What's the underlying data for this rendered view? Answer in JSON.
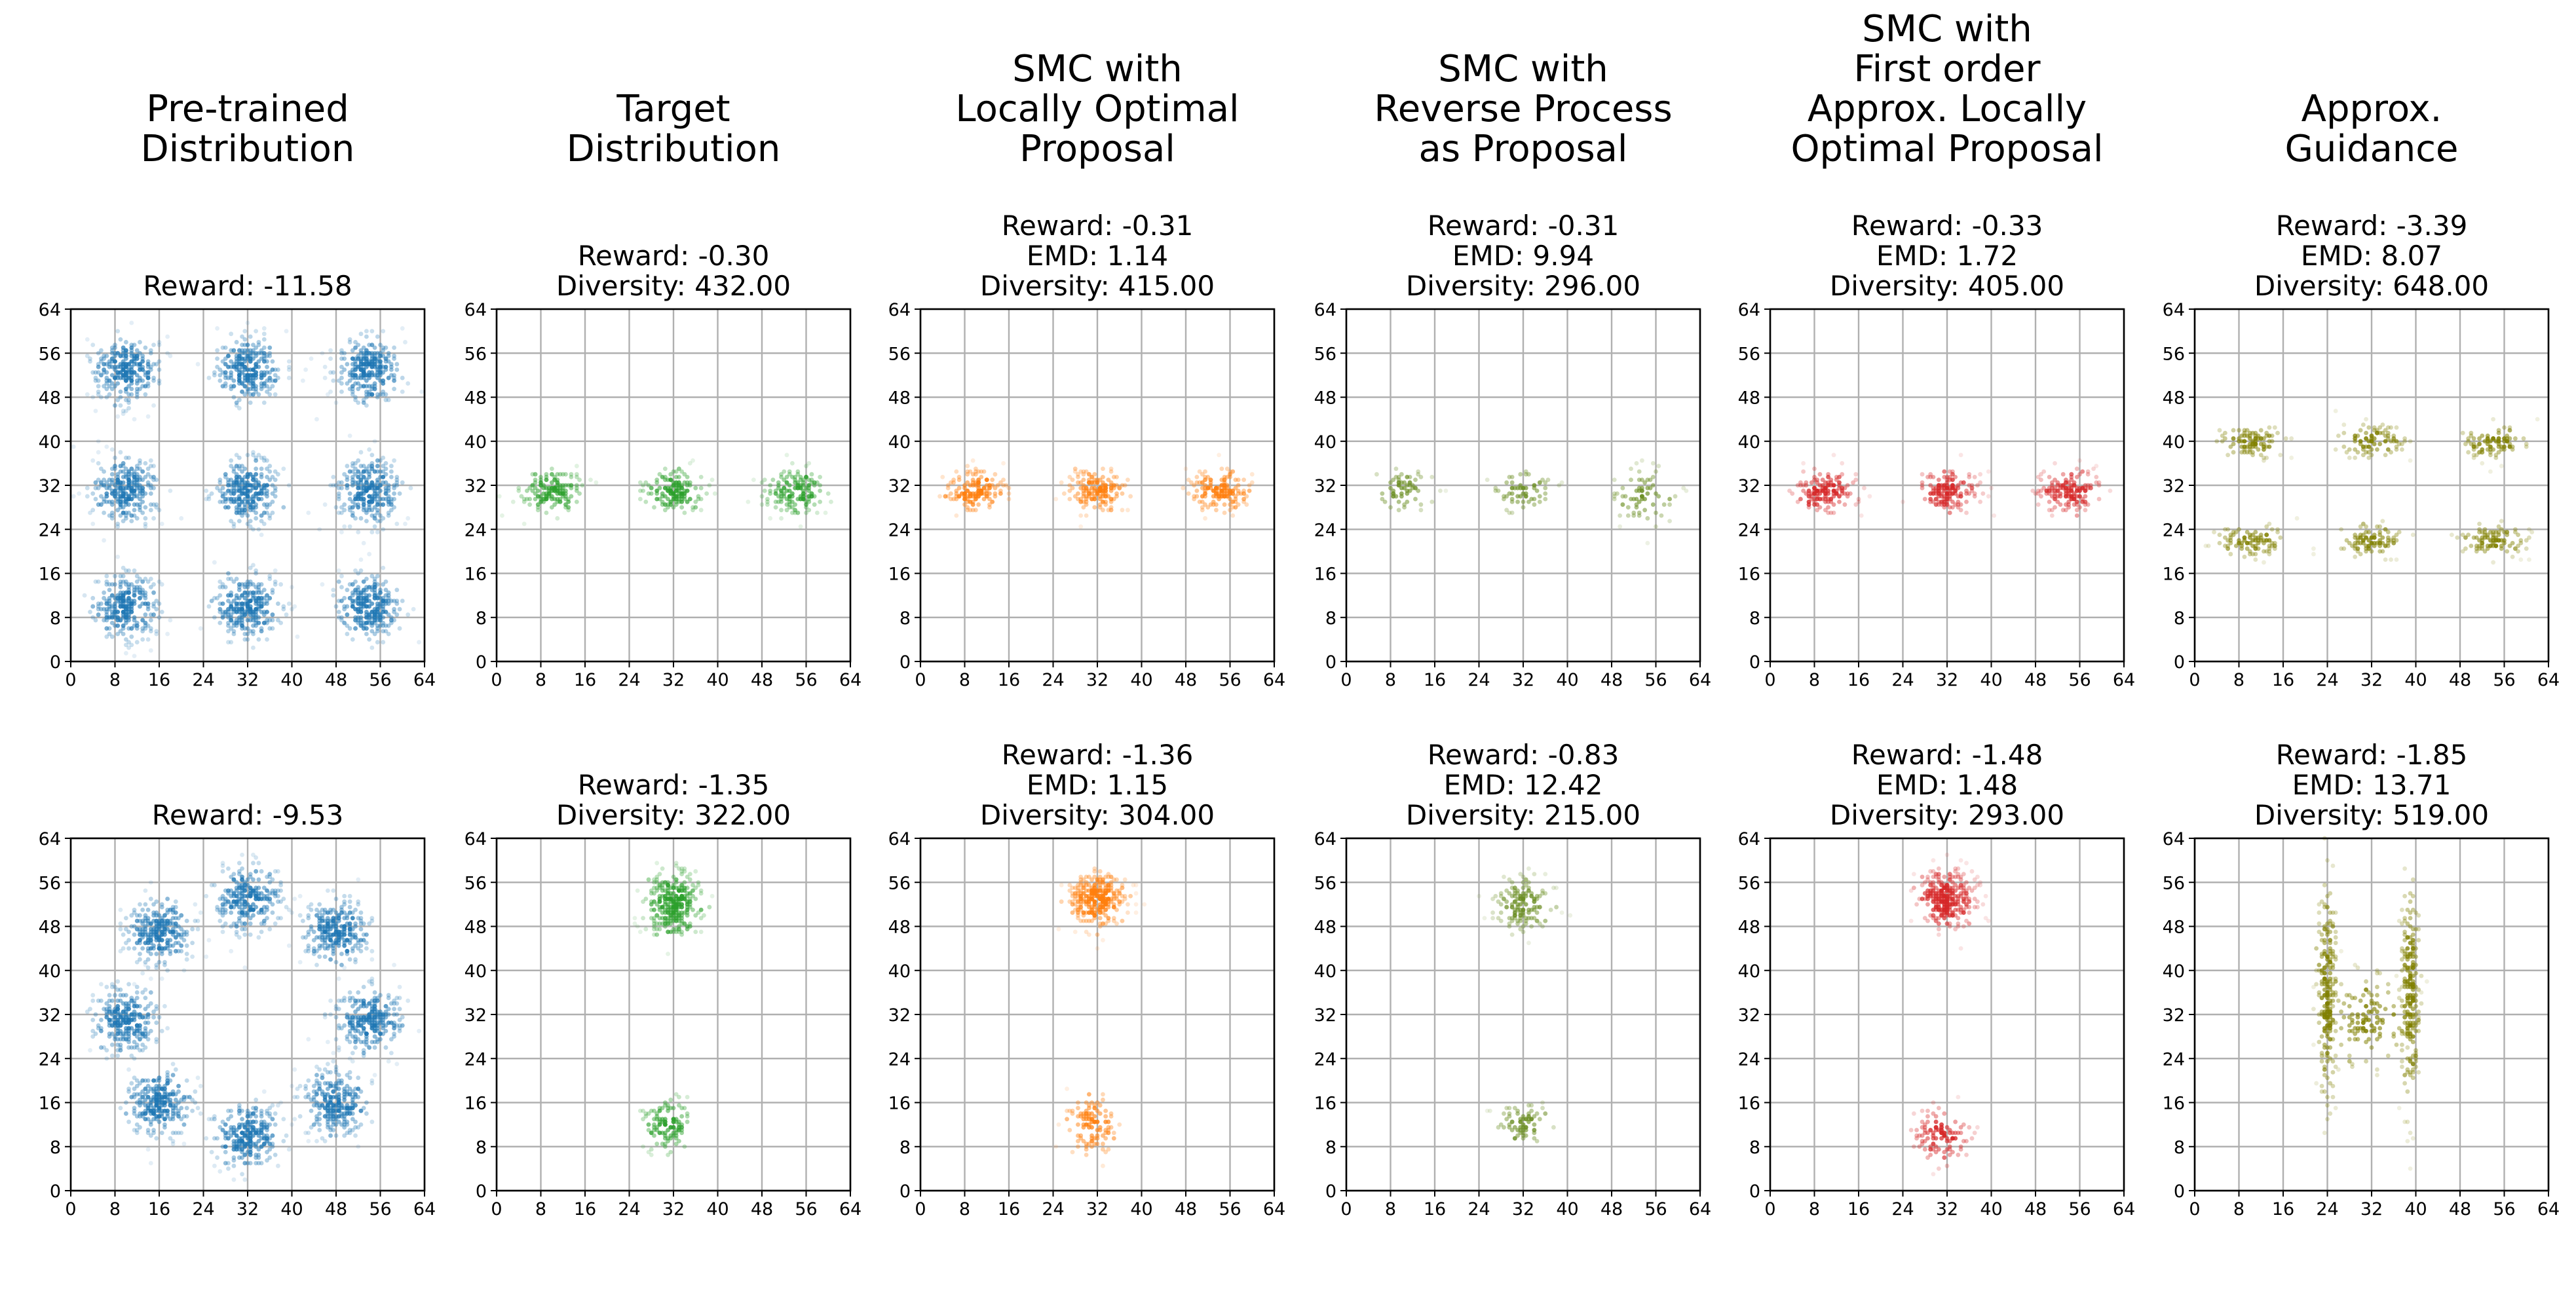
{
  "columns": [
    {
      "title": "Pre-trained\nDistribution",
      "color": "#1f77b4"
    },
    {
      "title": "Target\nDistribution",
      "color": "#2ca02c"
    },
    {
      "title": "SMC with\nLocally Optimal\nProposal",
      "color": "#ff7f0e"
    },
    {
      "title": "SMC with\nReverse Process\nas Proposal",
      "color": "#6b8e23"
    },
    {
      "title": "SMC with\nFirst order\nApprox. Locally\nOptimal Proposal",
      "color": "#d62728"
    },
    {
      "title": "Approx.\nGuidance",
      "color": "#808000"
    }
  ],
  "chart_data": [
    {
      "type": "scatter",
      "row": 0,
      "col": 0,
      "stats": [
        "Reward: -11.58"
      ],
      "xlim": [
        0,
        64
      ],
      "ylim": [
        0,
        64
      ],
      "ticks": [
        0,
        8,
        16,
        24,
        32,
        40,
        48,
        56,
        64
      ],
      "grid": true,
      "clusters": [
        {
          "x": 10,
          "y": 10,
          "sx": 3,
          "sy": 3,
          "n": 260
        },
        {
          "x": 32,
          "y": 10,
          "sx": 3,
          "sy": 3,
          "n": 260
        },
        {
          "x": 54,
          "y": 10,
          "sx": 3,
          "sy": 3,
          "n": 260
        },
        {
          "x": 10,
          "y": 31,
          "sx": 3,
          "sy": 3,
          "n": 260
        },
        {
          "x": 32,
          "y": 31,
          "sx": 3,
          "sy": 3,
          "n": 260
        },
        {
          "x": 54,
          "y": 31,
          "sx": 3,
          "sy": 3,
          "n": 260
        },
        {
          "x": 10,
          "y": 53,
          "sx": 3,
          "sy": 3,
          "n": 260
        },
        {
          "x": 32,
          "y": 53,
          "sx": 3,
          "sy": 3,
          "n": 260
        },
        {
          "x": 54,
          "y": 53,
          "sx": 3,
          "sy": 3,
          "n": 260
        }
      ]
    },
    {
      "type": "scatter",
      "row": 0,
      "col": 1,
      "stats": [
        "Reward: -0.30",
        "Diversity: 432.00"
      ],
      "xlim": [
        0,
        64
      ],
      "ylim": [
        0,
        64
      ],
      "ticks": [
        0,
        8,
        16,
        24,
        32,
        40,
        48,
        56,
        64
      ],
      "grid": true,
      "clusters": [
        {
          "x": 10,
          "y": 31,
          "sx": 2.8,
          "sy": 2,
          "n": 150
        },
        {
          "x": 32,
          "y": 31,
          "sx": 2.8,
          "sy": 2,
          "n": 150
        },
        {
          "x": 54,
          "y": 31,
          "sx": 2.8,
          "sy": 2,
          "n": 150
        }
      ]
    },
    {
      "type": "scatter",
      "row": 0,
      "col": 2,
      "stats": [
        "Reward: -0.31",
        "EMD: 1.14",
        "Diversity: 415.00"
      ],
      "xlim": [
        0,
        64
      ],
      "ylim": [
        0,
        64
      ],
      "ticks": [
        0,
        8,
        16,
        24,
        32,
        40,
        48,
        56,
        64
      ],
      "grid": true,
      "clusters": [
        {
          "x": 10,
          "y": 31,
          "sx": 2.8,
          "sy": 2,
          "n": 150
        },
        {
          "x": 32,
          "y": 31,
          "sx": 2.8,
          "sy": 2,
          "n": 150
        },
        {
          "x": 54,
          "y": 31,
          "sx": 2.8,
          "sy": 2,
          "n": 150
        }
      ]
    },
    {
      "type": "scatter",
      "row": 0,
      "col": 3,
      "stats": [
        "Reward: -0.31",
        "EMD: 9.94",
        "Diversity: 296.00"
      ],
      "xlim": [
        0,
        64
      ],
      "ylim": [
        0,
        64
      ],
      "ticks": [
        0,
        8,
        16,
        24,
        32,
        40,
        48,
        56,
        64
      ],
      "grid": true,
      "clusters": [
        {
          "x": 10,
          "y": 31,
          "sx": 2.8,
          "sy": 2,
          "n": 60
        },
        {
          "x": 32,
          "y": 31,
          "sx": 2.8,
          "sy": 2,
          "n": 60
        },
        {
          "x": 54,
          "y": 30,
          "sx": 2.8,
          "sy": 2.5,
          "n": 70
        }
      ]
    },
    {
      "type": "scatter",
      "row": 0,
      "col": 4,
      "stats": [
        "Reward: -0.33",
        "EMD: 1.72",
        "Diversity: 405.00"
      ],
      "xlim": [
        0,
        64
      ],
      "ylim": [
        0,
        64
      ],
      "ticks": [
        0,
        8,
        16,
        24,
        32,
        40,
        48,
        56,
        64
      ],
      "grid": true,
      "clusters": [
        {
          "x": 10,
          "y": 31,
          "sx": 2.8,
          "sy": 2,
          "n": 150
        },
        {
          "x": 32,
          "y": 31,
          "sx": 2.8,
          "sy": 2,
          "n": 150
        },
        {
          "x": 54,
          "y": 31,
          "sx": 2.8,
          "sy": 2,
          "n": 150
        }
      ]
    },
    {
      "type": "scatter",
      "row": 0,
      "col": 5,
      "stats": [
        "Reward: -3.39",
        "EMD: 8.07",
        "Diversity: 648.00"
      ],
      "xlim": [
        0,
        64
      ],
      "ylim": [
        0,
        64
      ],
      "ticks": [
        0,
        8,
        16,
        24,
        32,
        40,
        48,
        56,
        64
      ],
      "grid": true,
      "clusters": [
        {
          "x": 10,
          "y": 40,
          "sx": 3,
          "sy": 1.5,
          "n": 90
        },
        {
          "x": 32,
          "y": 40,
          "sx": 3,
          "sy": 1.5,
          "n": 90
        },
        {
          "x": 54,
          "y": 40,
          "sx": 3,
          "sy": 1.5,
          "n": 90
        },
        {
          "x": 10,
          "y": 22,
          "sx": 3,
          "sy": 1.5,
          "n": 90
        },
        {
          "x": 32,
          "y": 22,
          "sx": 3,
          "sy": 1.5,
          "n": 90
        },
        {
          "x": 54,
          "y": 22,
          "sx": 3,
          "sy": 1.5,
          "n": 90
        }
      ]
    },
    {
      "type": "scatter",
      "row": 1,
      "col": 0,
      "stats": [
        "Reward: -9.53"
      ],
      "xlim": [
        0,
        64
      ],
      "ylim": [
        0,
        64
      ],
      "ticks": [
        0,
        8,
        16,
        24,
        32,
        40,
        48,
        56,
        64
      ],
      "grid": true,
      "clusters": [
        {
          "x": 32,
          "y": 53,
          "sx": 3,
          "sy": 3,
          "n": 250
        },
        {
          "x": 16,
          "y": 47,
          "sx": 3,
          "sy": 3,
          "n": 250
        },
        {
          "x": 48,
          "y": 47,
          "sx": 3,
          "sy": 3,
          "n": 250
        },
        {
          "x": 10,
          "y": 31,
          "sx": 3,
          "sy": 3,
          "n": 250
        },
        {
          "x": 54,
          "y": 31,
          "sx": 3,
          "sy": 3,
          "n": 250
        },
        {
          "x": 16,
          "y": 16,
          "sx": 3,
          "sy": 3,
          "n": 250
        },
        {
          "x": 48,
          "y": 16,
          "sx": 3,
          "sy": 3,
          "n": 250
        },
        {
          "x": 32,
          "y": 10,
          "sx": 3,
          "sy": 3,
          "n": 250
        }
      ]
    },
    {
      "type": "scatter",
      "row": 1,
      "col": 1,
      "stats": [
        "Reward: -1.35",
        "Diversity: 322.00"
      ],
      "xlim": [
        0,
        64
      ],
      "ylim": [
        0,
        64
      ],
      "ticks": [
        0,
        8,
        16,
        24,
        32,
        40,
        48,
        56,
        64
      ],
      "grid": true,
      "clusters": [
        {
          "x": 32,
          "y": 52,
          "sx": 2.5,
          "sy": 3,
          "n": 300
        },
        {
          "x": 31,
          "y": 12,
          "sx": 2.2,
          "sy": 2.5,
          "n": 110
        }
      ]
    },
    {
      "type": "scatter",
      "row": 1,
      "col": 2,
      "stats": [
        "Reward: -1.36",
        "EMD: 1.15",
        "Diversity: 304.00"
      ],
      "xlim": [
        0,
        64
      ],
      "ylim": [
        0,
        64
      ],
      "ticks": [
        0,
        8,
        16,
        24,
        32,
        40,
        48,
        56,
        64
      ],
      "grid": true,
      "clusters": [
        {
          "x": 32,
          "y": 53,
          "sx": 2.5,
          "sy": 2.6,
          "n": 300
        },
        {
          "x": 31,
          "y": 12,
          "sx": 2.2,
          "sy": 3,
          "n": 110
        }
      ]
    },
    {
      "type": "scatter",
      "row": 1,
      "col": 3,
      "stats": [
        "Reward: -0.83",
        "EMD: 12.42",
        "Diversity: 215.00"
      ],
      "xlim": [
        0,
        64
      ],
      "ylim": [
        0,
        64
      ],
      "ticks": [
        0,
        8,
        16,
        24,
        32,
        40,
        48,
        56,
        64
      ],
      "grid": true,
      "clusters": [
        {
          "x": 32,
          "y": 52,
          "sx": 2.5,
          "sy": 2.5,
          "n": 140
        },
        {
          "x": 32,
          "y": 12,
          "sx": 2.5,
          "sy": 2,
          "n": 70
        }
      ]
    },
    {
      "type": "scatter",
      "row": 1,
      "col": 4,
      "stats": [
        "Reward: -1.48",
        "EMD: 1.48",
        "Diversity: 293.00"
      ],
      "xlim": [
        0,
        64
      ],
      "ylim": [
        0,
        64
      ],
      "ticks": [
        0,
        8,
        16,
        24,
        32,
        40,
        48,
        56,
        64
      ],
      "grid": true,
      "clusters": [
        {
          "x": 32,
          "y": 53,
          "sx": 2.5,
          "sy": 2.6,
          "n": 300
        },
        {
          "x": 31,
          "y": 10,
          "sx": 2.5,
          "sy": 2.5,
          "n": 110
        }
      ]
    },
    {
      "type": "scatter",
      "row": 1,
      "col": 5,
      "stats": [
        "Reward: -1.85",
        "EMD: 13.71",
        "Diversity: 519.00"
      ],
      "xlim": [
        0,
        64
      ],
      "ylim": [
        0,
        64
      ],
      "ticks": [
        0,
        8,
        16,
        24,
        32,
        40,
        48,
        56,
        64
      ],
      "grid": true,
      "clusters": [
        {
          "x": 24,
          "y": 36,
          "sx": 0.9,
          "sy": 10,
          "n": 220
        },
        {
          "x": 39,
          "y": 36,
          "sx": 0.9,
          "sy": 10,
          "n": 220
        },
        {
          "x": 31.5,
          "y": 31,
          "sx": 4,
          "sy": 4,
          "n": 120
        }
      ]
    }
  ]
}
